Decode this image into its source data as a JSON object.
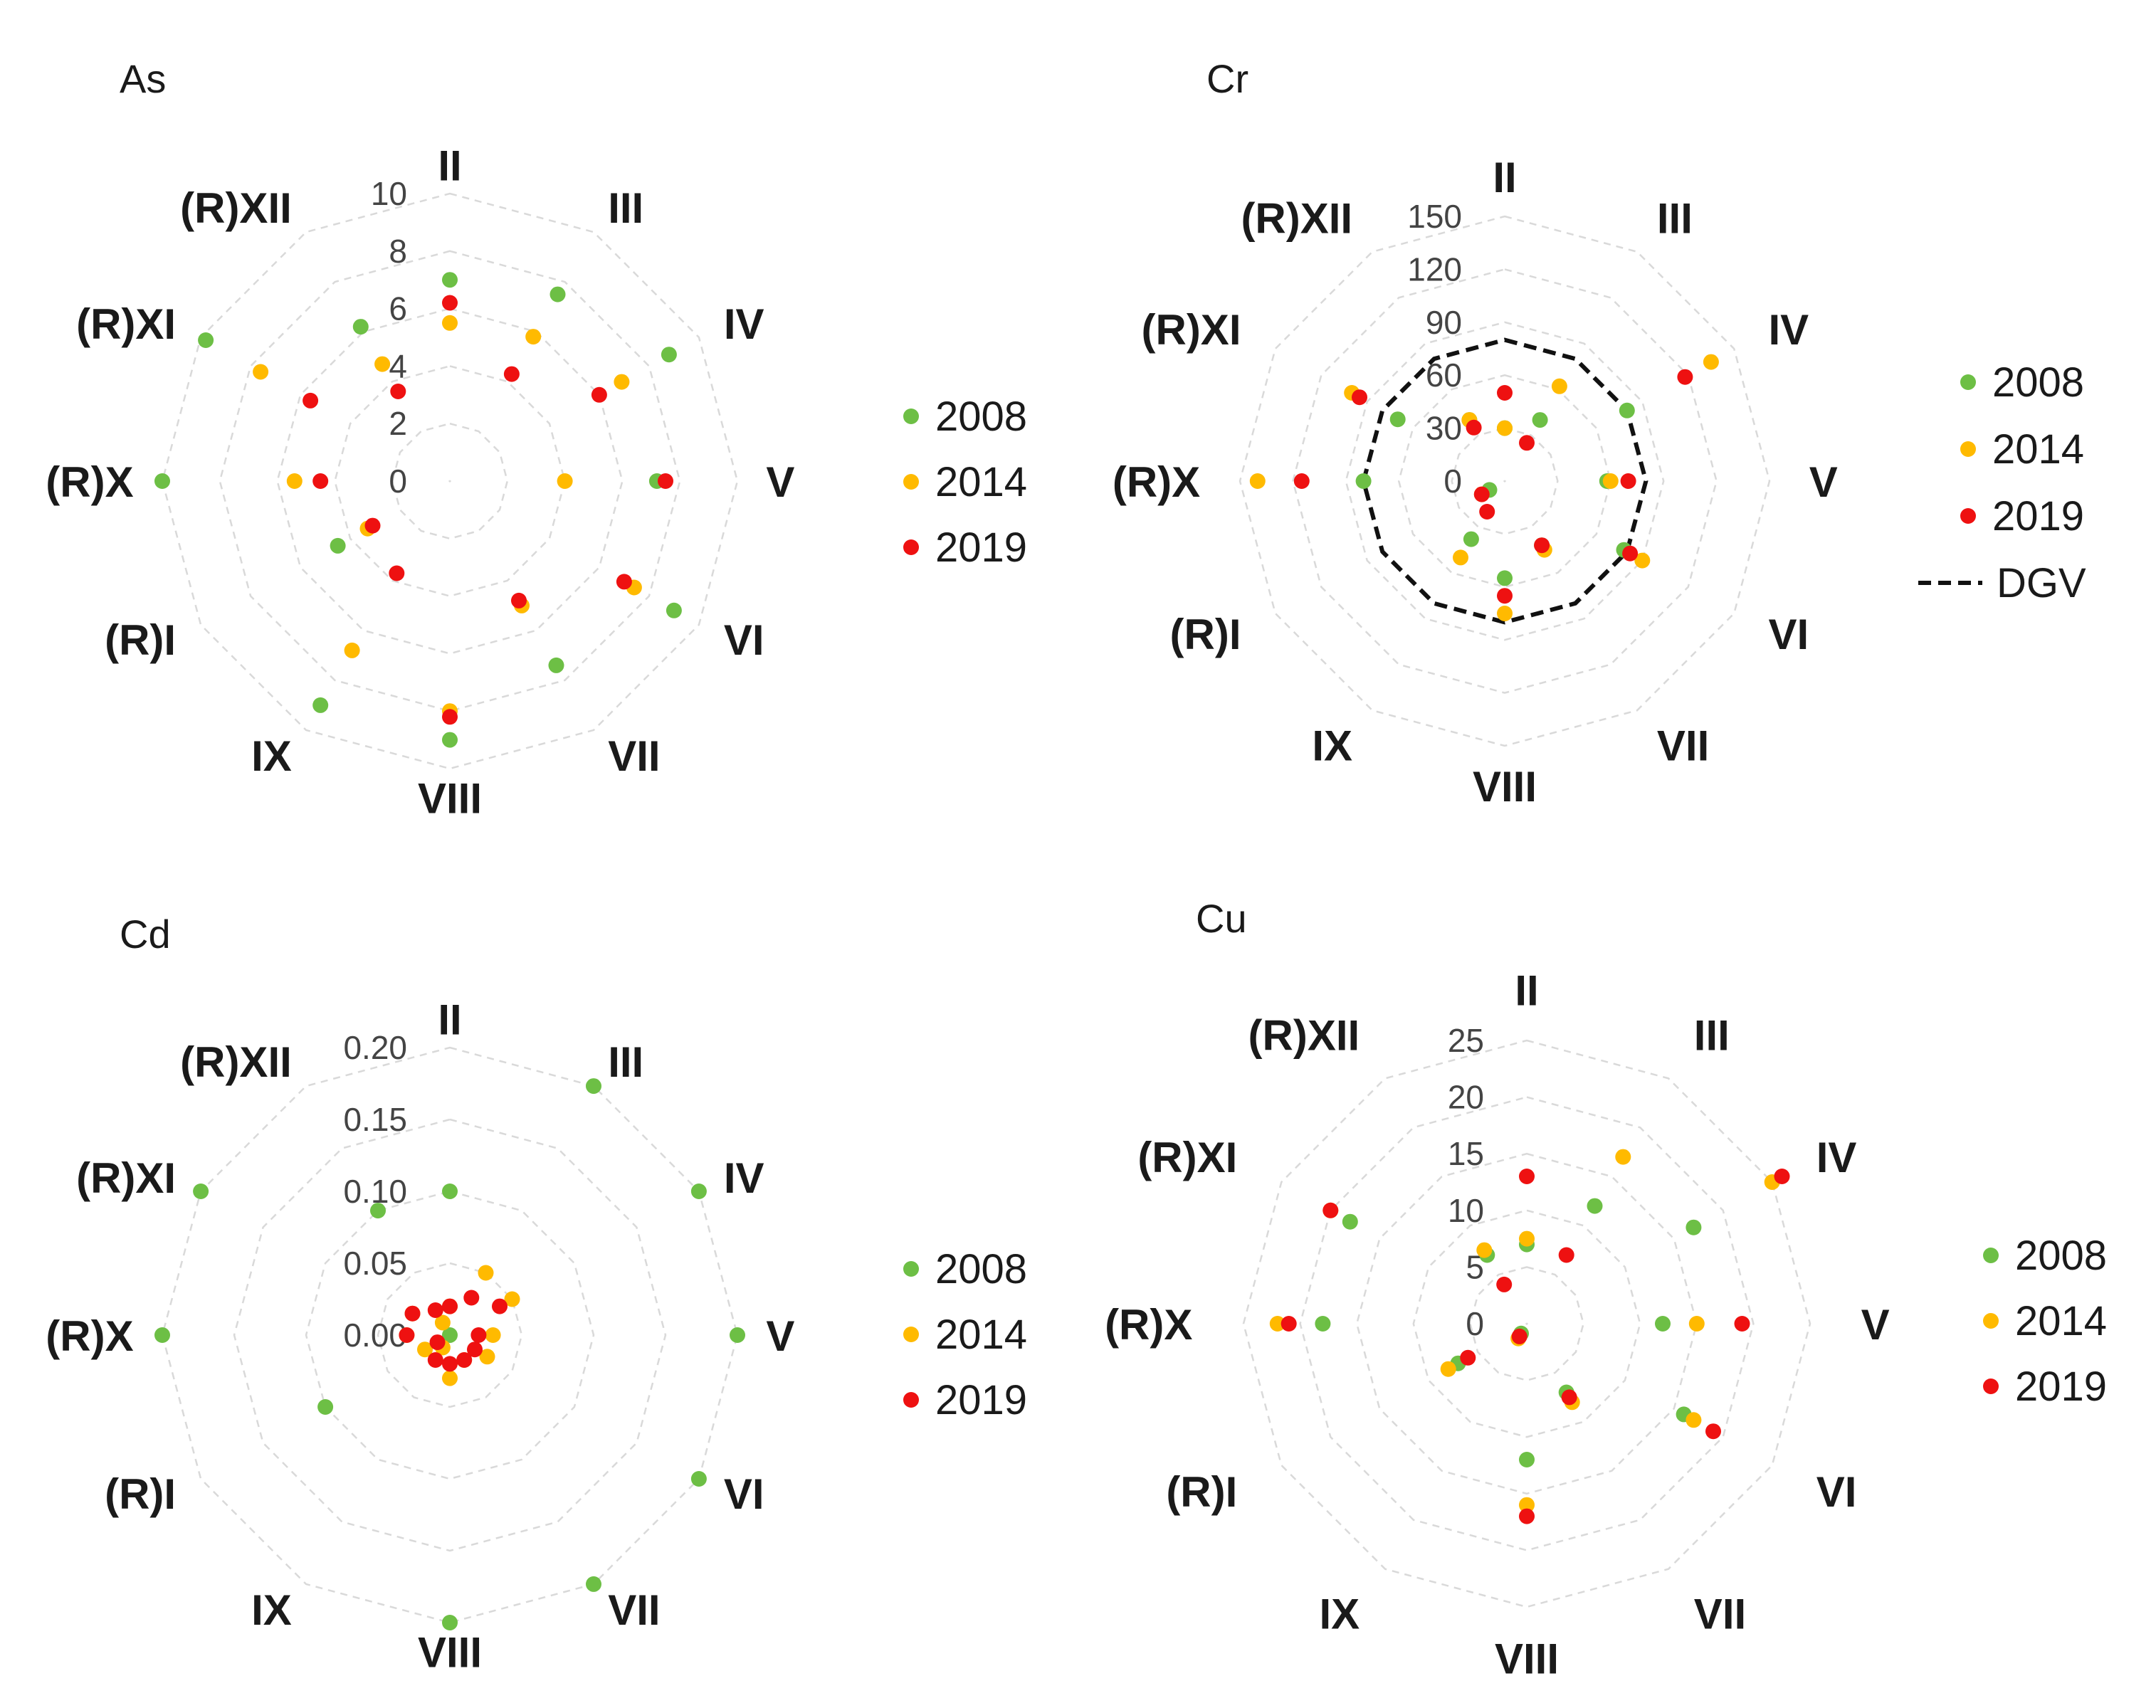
{
  "colors": {
    "2008": "#6dbf45",
    "2014": "#ffba00",
    "2019": "#ee1111",
    "grid": "#d9d9d9",
    "dgv": "#111111"
  },
  "chart_data": [
    {
      "type": "radar",
      "title": "As",
      "categories": [
        "II",
        "III",
        "IV",
        "V",
        "VI",
        "VII",
        "VIII",
        "IX",
        "(R)I",
        "(R)X",
        "(R)XI",
        "(R)XII"
      ],
      "ticks": [
        "0",
        "2",
        "4",
        "6",
        "8",
        "10"
      ],
      "rmin": 0,
      "rmax": 10,
      "series": [
        {
          "name": "2008",
          "values": [
            7.0,
            7.5,
            8.8,
            7.2,
            9.0,
            7.4,
            9.0,
            9.0,
            4.5,
            10.0,
            9.8,
            6.2
          ]
        },
        {
          "name": "2014",
          "values": [
            5.5,
            5.8,
            6.9,
            4.0,
            7.4,
            5.0,
            8.0,
            6.8,
            3.3,
            5.4,
            7.6,
            4.7
          ]
        },
        {
          "name": "2019",
          "values": [
            6.2,
            4.3,
            6.0,
            7.5,
            7.0,
            4.8,
            8.2,
            3.7,
            3.1,
            4.5,
            5.6,
            3.6
          ]
        }
      ],
      "legend": {
        "position": "right",
        "entries": [
          "2008",
          "2014",
          "2019"
        ]
      }
    },
    {
      "type": "radar",
      "title": "Cr",
      "categories": [
        "II",
        "III",
        "IV",
        "V",
        "VI",
        "VII",
        "VIII",
        "IX",
        "(R)I",
        "(R)X",
        "(R)XI",
        "(R)XII"
      ],
      "ticks": [
        "0",
        "30",
        "60",
        "90",
        "120",
        "150"
      ],
      "rmin": 0,
      "rmax": 150,
      "series": [
        {
          "name": "2008",
          "values": [
            30,
            40,
            80,
            58,
            78,
            42,
            55,
            38,
            10,
            80,
            70,
            40
          ]
        },
        {
          "name": "2014",
          "values": [
            30,
            62,
            135,
            60,
            90,
            45,
            75,
            50,
            15,
            140,
            100,
            40
          ]
        },
        {
          "name": "2019",
          "values": [
            50,
            25,
            118,
            70,
            82,
            42,
            65,
            20,
            15,
            115,
            95,
            35
          ]
        }
      ],
      "reference": {
        "name": "DGV",
        "value": 80
      },
      "legend": {
        "position": "right",
        "entries": [
          "2008",
          "2014",
          "2019",
          "DGV"
        ]
      }
    },
    {
      "type": "radar",
      "title": "Cd",
      "categories": [
        "II",
        "III",
        "IV",
        "V",
        "VI",
        "VII",
        "VIII",
        "IX",
        "(R)I",
        "(R)X",
        "(R)XI",
        "(R)XII"
      ],
      "ticks": [
        "0.00",
        "0.05",
        "0.10",
        "0.15",
        "0.20"
      ],
      "rmin": 0,
      "rmax": 0.2,
      "series": [
        {
          "name": "2008",
          "values": [
            0.1,
            0.2,
            0.2,
            0.2,
            0.2,
            0.2,
            0.2,
            0.0,
            0.1,
            0.2,
            0.2,
            0.1
          ]
        },
        {
          "name": "2014",
          "values": [
            0.02,
            0.05,
            0.05,
            0.03,
            0.03,
            0.02,
            0.03,
            0.01,
            0.02,
            0.03,
            0.03,
            0.01
          ]
        },
        {
          "name": "2019",
          "values": [
            0.02,
            0.03,
            0.04,
            0.02,
            0.02,
            0.02,
            0.02,
            0.02,
            0.01,
            0.03,
            0.03,
            0.02
          ]
        }
      ],
      "legend": {
        "position": "right",
        "entries": [
          "2008",
          "2014",
          "2019"
        ]
      }
    },
    {
      "type": "radar",
      "title": "Cu",
      "categories": [
        "II",
        "III",
        "IV",
        "V",
        "VI",
        "VII",
        "VIII",
        "IX",
        "(R)I",
        "(R)X",
        "(R)XI",
        "(R)XII"
      ],
      "ticks": [
        "0",
        "5",
        "10",
        "15",
        "20",
        "25"
      ],
      "rmin": 0,
      "rmax": 25,
      "series": [
        {
          "name": "2008",
          "values": [
            7,
            12,
            17,
            12,
            16,
            7,
            12,
            1,
            7,
            18,
            18,
            7
          ]
        },
        {
          "name": "2014",
          "values": [
            7.5,
            17,
            25,
            15,
            17,
            8,
            16,
            1.5,
            8,
            22,
            20,
            7.5
          ]
        },
        {
          "name": "2019",
          "values": [
            13,
            7,
            26,
            19,
            19,
            7.5,
            17,
            1.3,
            6,
            21,
            20,
            4
          ]
        }
      ],
      "legend": {
        "position": "right",
        "entries": [
          "2008",
          "2014",
          "2019"
        ]
      }
    }
  ]
}
